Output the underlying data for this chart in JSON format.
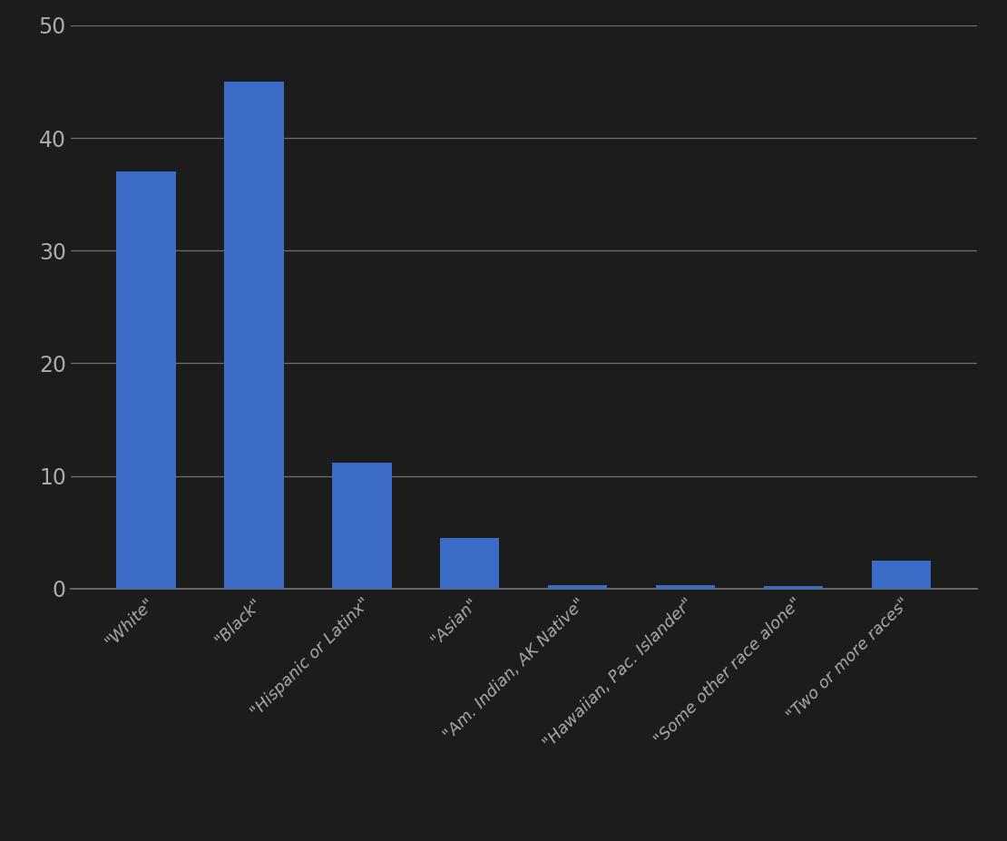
{
  "categories": [
    "\"White\"",
    "\"Black\"",
    "\"Hispanic or Latinx\"",
    "\"Asian\"",
    "\"Am. Indian, AK Native\"",
    "\"Hawaiian, Pac. Islander\"",
    "\"Some other race alone\"",
    "\"Two or more races\""
  ],
  "values": [
    37.0,
    45.0,
    11.2,
    4.5,
    0.3,
    0.3,
    0.2,
    2.5
  ],
  "bar_color": "#3A6CC8",
  "background_color": "#1a1a2e",
  "figure_background": "#1a1a2e",
  "text_color": "#aaaaaa",
  "grid_color": "#888888",
  "bottom_spine_color": "#888888",
  "ylim": [
    0,
    50
  ],
  "yticks": [
    0,
    10,
    20,
    30,
    40,
    50
  ],
  "bar_width": 0.55,
  "figsize": [
    11.1,
    9.27
  ],
  "dpi": 100,
  "tick_label_fontsize": 17,
  "xtick_label_fontsize": 13
}
